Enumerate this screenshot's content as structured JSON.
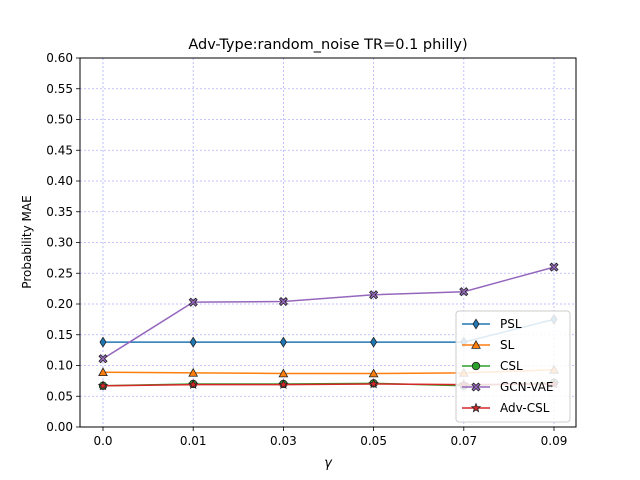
{
  "chart_data": {
    "type": "line",
    "title": "Adv-Type:random_noise TR=0.1 philly)",
    "xlabel": "γ",
    "ylabel": "Probability MAE",
    "categories": [
      "0.0",
      "0.01",
      "0.03",
      "0.05",
      "0.07",
      "0.09"
    ],
    "ylim": [
      0.0,
      0.6
    ],
    "yticks": [
      "0.00",
      "0.05",
      "0.10",
      "0.15",
      "0.20",
      "0.25",
      "0.30",
      "0.35",
      "0.40",
      "0.45",
      "0.50",
      "0.55",
      "0.60"
    ],
    "grid": true,
    "grid_color": "#b0b0ff",
    "legend_position": "lower right",
    "series": [
      {
        "name": "PSL",
        "color": "#1f77b4",
        "marker": "diamond",
        "values": [
          0.138,
          0.138,
          0.138,
          0.138,
          0.138,
          0.175
        ]
      },
      {
        "name": "SL",
        "color": "#ff7f0e",
        "marker": "triangle",
        "values": [
          0.089,
          0.088,
          0.087,
          0.087,
          0.088,
          0.093
        ]
      },
      {
        "name": "CSL",
        "color": "#2ca02c",
        "marker": "circle",
        "values": [
          0.067,
          0.07,
          0.07,
          0.071,
          0.067,
          0.072
        ]
      },
      {
        "name": "GCN-VAE",
        "color": "#9467bd",
        "marker": "x-marker",
        "values": [
          0.111,
          0.203,
          0.204,
          0.215,
          0.22,
          0.26
        ]
      },
      {
        "name": "Adv-CSL",
        "color": "#d62728",
        "marker": "star",
        "values": [
          0.067,
          0.069,
          0.069,
          0.07,
          0.069,
          0.07
        ]
      }
    ]
  }
}
